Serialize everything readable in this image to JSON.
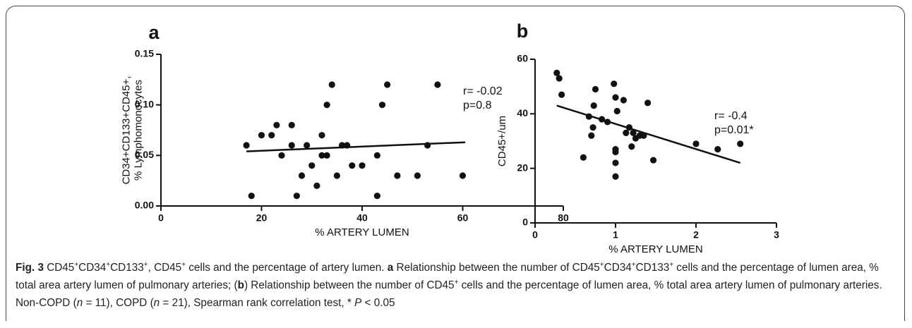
{
  "chart_data": [
    {
      "type": "scatter",
      "title": "a",
      "x_label": "% ARTERY LUMEN",
      "y_label": [
        "CD34+CD133+CD45+,",
        "% Lymphomonocytes"
      ],
      "color": "#111111",
      "x": [
        17,
        18,
        20,
        22,
        23,
        24,
        26,
        26,
        27,
        28,
        29,
        30,
        31,
        32,
        32,
        33,
        33,
        34,
        35,
        36,
        37,
        38,
        40,
        43,
        43,
        44,
        45,
        47,
        51,
        53,
        55,
        60
      ],
      "values": [
        0.06,
        0.01,
        0.07,
        0.07,
        0.08,
        0.05,
        0.08,
        0.06,
        0.01,
        0.03,
        0.06,
        0.04,
        0.02,
        0.07,
        0.05,
        0.1,
        0.05,
        0.12,
        0.03,
        0.06,
        0.06,
        0.04,
        0.04,
        0.05,
        0.01,
        0.1,
        0.12,
        0.03,
        0.03,
        0.06,
        0.12,
        0.03
      ],
      "trend_line": {
        "x": [
          17,
          60.5
        ],
        "values": [
          0.054,
          0.063
        ]
      },
      "annotations": [
        "r= -0.02",
        "p=0.8"
      ],
      "xlim": [
        0,
        80
      ],
      "xticks": [
        0,
        20,
        40,
        60,
        80
      ],
      "ylim": [
        0,
        0.15
      ],
      "yticks": [
        {
          "value": 0,
          "label": "0.00"
        },
        {
          "value": 0.05,
          "label": "0.05"
        },
        {
          "value": 0.1,
          "label": "0.10"
        },
        {
          "value": 0.15,
          "label": "0.15"
        }
      ]
    },
    {
      "type": "scatter",
      "title": "b",
      "x_label": "% ARTERY LUMEN",
      "y_label": [
        "CD45+/um"
      ],
      "color": "#111111",
      "x": [
        0.27,
        0.3,
        0.33,
        0.6,
        0.67,
        0.7,
        0.72,
        0.73,
        0.75,
        0.83,
        0.9,
        0.98,
        1.0,
        1.0,
        1.0,
        1.0,
        1.0,
        1.02,
        1.1,
        1.13,
        1.17,
        1.2,
        1.22,
        1.25,
        1.3,
        1.35,
        1.4,
        1.47,
        2.0,
        2.27,
        2.55
      ],
      "values": [
        55,
        53,
        47,
        24,
        39,
        32,
        35,
        43,
        49,
        38,
        37,
        51,
        46,
        27,
        26,
        22,
        17,
        41,
        45,
        33,
        35,
        28,
        33,
        31,
        32,
        32,
        44,
        23,
        29,
        27,
        29
      ],
      "trend_line": {
        "x": [
          0.27,
          2.55
        ],
        "values": [
          43,
          22
        ]
      },
      "annotations": [
        "r= -0.4",
        "p=0.01*"
      ],
      "xlim": [
        0,
        3
      ],
      "xticks": [
        0,
        1,
        2,
        3
      ],
      "ylim": [
        0,
        60
      ],
      "yticks": [
        0,
        20,
        40,
        60
      ]
    }
  ],
  "caption": {
    "runs": [
      {
        "text": "Fig. 3",
        "style": "b"
      },
      {
        "text": " CD45"
      },
      {
        "text": "+",
        "style": "sup"
      },
      {
        "text": "CD34"
      },
      {
        "text": "+",
        "style": "sup"
      },
      {
        "text": "CD133"
      },
      {
        "text": "+",
        "style": "sup"
      },
      {
        "text": ", CD45"
      },
      {
        "text": "+",
        "style": "sup"
      },
      {
        "text": " cells and the percentage of artery lumen. "
      },
      {
        "text": "a",
        "style": "b"
      },
      {
        "text": " Relationship between the number of CD45"
      },
      {
        "text": "+",
        "style": "sup"
      },
      {
        "text": "CD34"
      },
      {
        "text": "+",
        "style": "sup"
      },
      {
        "text": "CD133"
      },
      {
        "text": "+",
        "style": "sup"
      },
      {
        "text": " cells and the percentage of lumen area, % total area artery lumen of pulmonary arteries; ("
      },
      {
        "text": "b",
        "style": "b"
      },
      {
        "text": ") Relationship between the number of CD45"
      },
      {
        "text": "+",
        "style": "sup"
      },
      {
        "text": " cells and the percentage of lumen area, % total area artery lumen of pulmonary arteries. Non-COPD ("
      },
      {
        "text": "n",
        "style": "i"
      },
      {
        "text": " = 11), COPD ("
      },
      {
        "text": "n",
        "style": "i"
      },
      {
        "text": " = 21), Spearman rank correlation test, * "
      },
      {
        "text": "P",
        "style": "i"
      },
      {
        "text": " < 0.05"
      }
    ]
  }
}
